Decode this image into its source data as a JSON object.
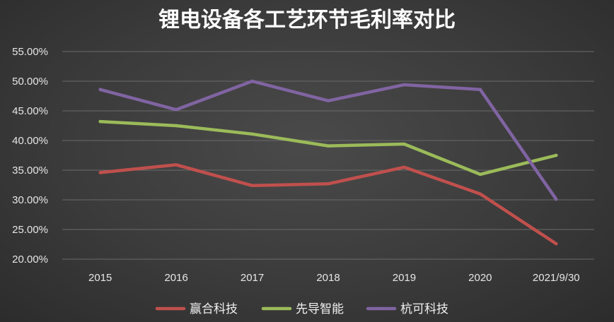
{
  "chart_data": {
    "type": "line",
    "title": "锂电设备各工艺环节毛利率对比",
    "categories": [
      "2015",
      "2016",
      "2017",
      "2018",
      "2019",
      "2020",
      "2021/9/30"
    ],
    "ylim": [
      20,
      55
    ],
    "yticks": [
      20,
      25,
      30,
      35,
      40,
      45,
      50,
      55
    ],
    "ytick_labels": [
      "20.00%",
      "25.00%",
      "30.00%",
      "35.00%",
      "40.00%",
      "45.00%",
      "50.00%",
      "55.00%"
    ],
    "grid": true,
    "legend_position": "bottom",
    "series": [
      {
        "name": "赢合科技",
        "color": "#c0504d",
        "values": [
          34.6,
          35.9,
          32.4,
          32.7,
          35.5,
          31.0,
          22.6
        ]
      },
      {
        "name": "先导智能",
        "color": "#9bbb59",
        "values": [
          43.2,
          42.5,
          41.1,
          39.1,
          39.4,
          34.3,
          37.5
        ]
      },
      {
        "name": "杭可科技",
        "color": "#8064a2",
        "values": [
          48.6,
          45.2,
          50.0,
          46.7,
          49.4,
          48.6,
          30.1
        ]
      }
    ]
  }
}
